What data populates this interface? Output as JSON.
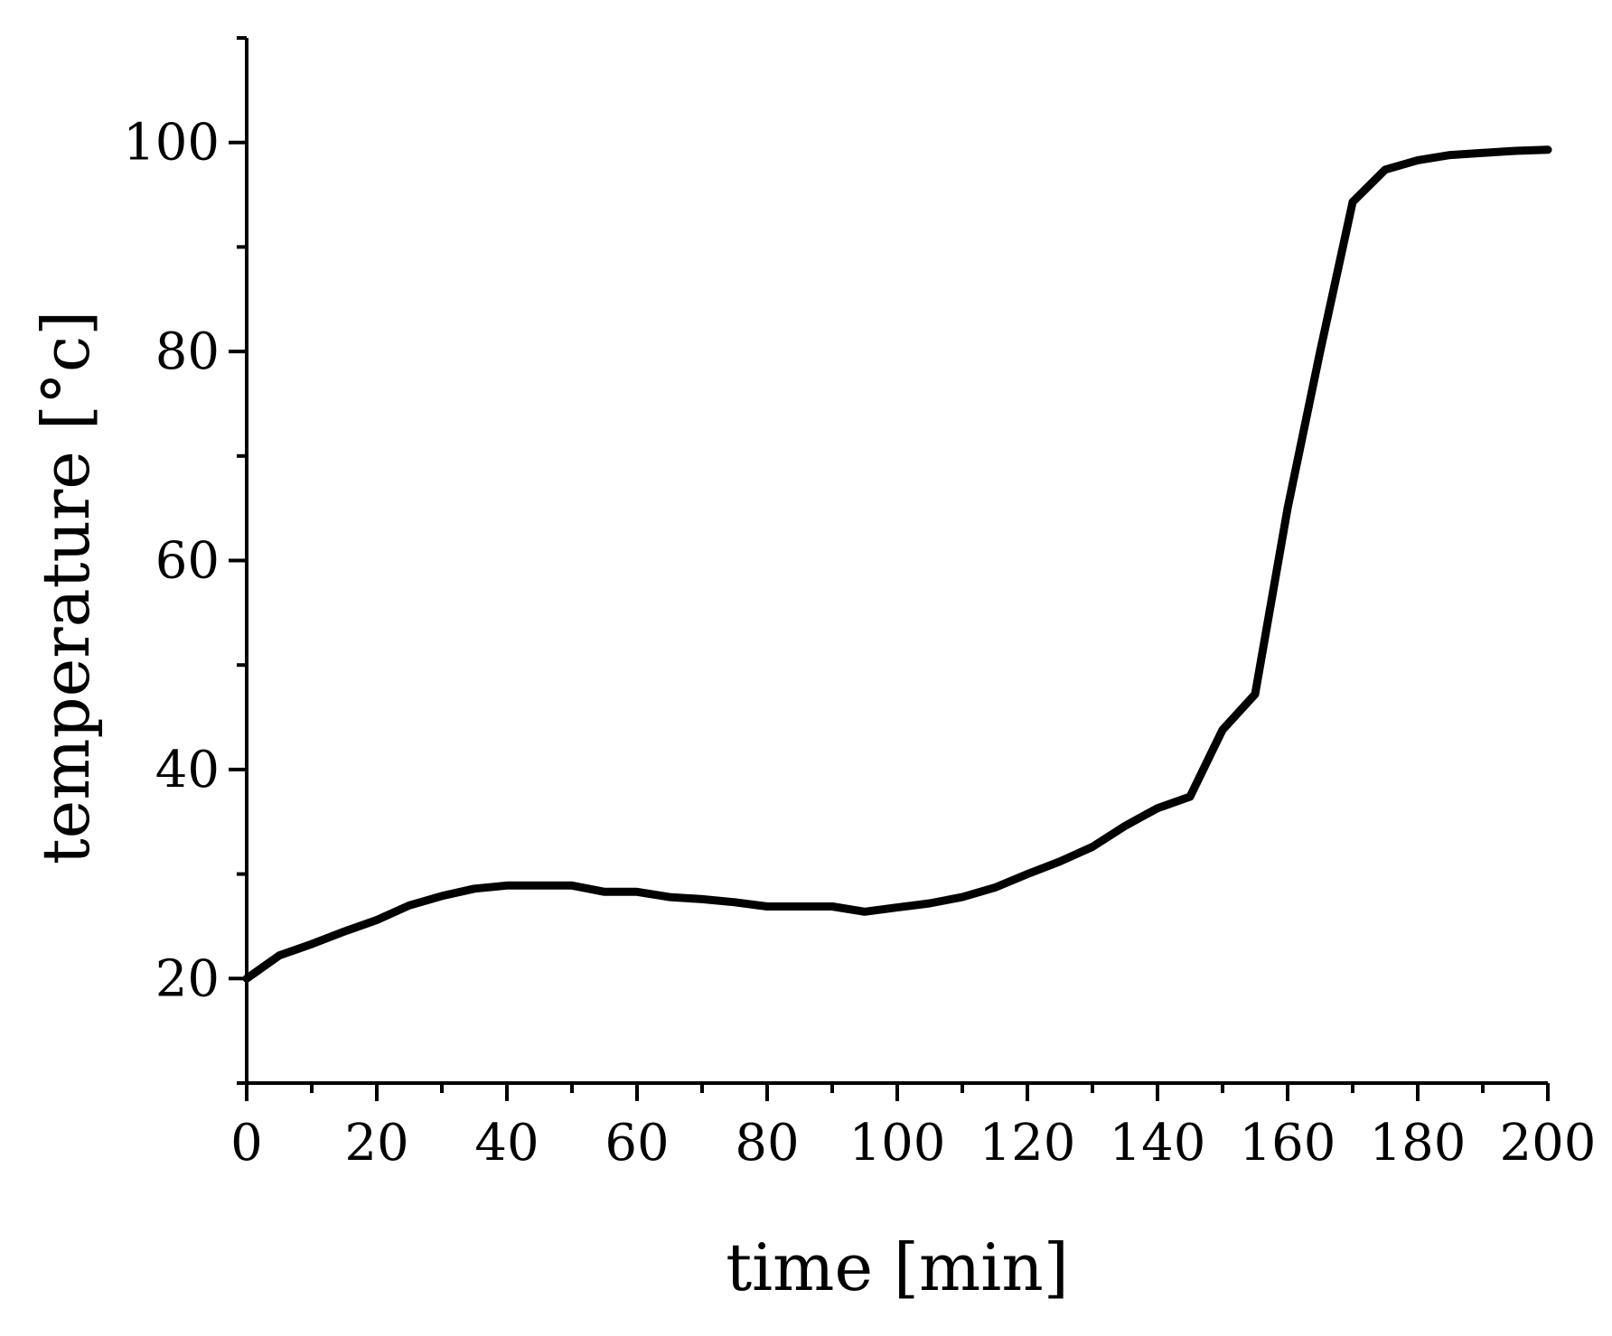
{
  "chart_data": {
    "type": "line",
    "xlabel": "time [min]",
    "ylabel": "temperature [°c]",
    "xlim": [
      0,
      200
    ],
    "ylim": [
      10,
      110
    ],
    "x_ticks": [
      0,
      20,
      40,
      60,
      80,
      100,
      120,
      140,
      160,
      180,
      200
    ],
    "x_tick_labels": [
      "0",
      "20",
      "40",
      "60",
      "80",
      "100",
      "120",
      "140",
      "160",
      "180",
      "200"
    ],
    "x_minor_step": 10,
    "y_ticks": [
      20,
      40,
      60,
      80,
      100
    ],
    "y_tick_labels": [
      "20",
      "40",
      "60",
      "80",
      "100"
    ],
    "y_minor_step": 10,
    "grid": false,
    "line_color": "#000000",
    "series": [
      {
        "x": [
          0,
          5,
          10,
          15,
          20,
          25,
          30,
          35,
          40,
          45,
          50,
          55,
          60,
          65,
          70,
          75,
          80,
          85,
          90,
          95,
          100,
          105,
          110,
          115,
          120,
          125,
          130,
          135,
          140,
          145,
          150,
          155,
          160,
          165,
          170,
          175,
          180,
          185,
          190,
          195,
          200
        ],
        "y": [
          20.0,
          22.2,
          23.3,
          24.5,
          25.6,
          27.0,
          27.9,
          28.6,
          28.9,
          28.9,
          28.9,
          28.3,
          28.3,
          27.8,
          27.6,
          27.3,
          26.9,
          26.9,
          26.9,
          26.4,
          26.8,
          27.2,
          27.8,
          28.7,
          30.0,
          31.2,
          32.6,
          34.6,
          36.3,
          37.4,
          43.8,
          47.2,
          65.0,
          80.0,
          94.3,
          97.4,
          98.3,
          98.8,
          99.0,
          99.2,
          99.3
        ]
      }
    ]
  }
}
